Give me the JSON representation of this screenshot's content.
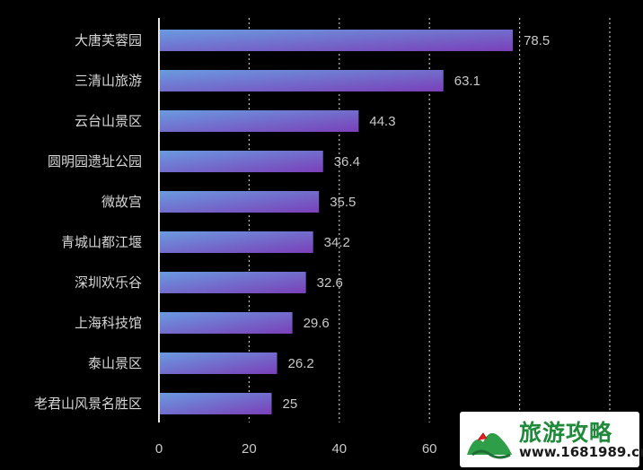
{
  "chart_data": {
    "type": "bar",
    "orientation": "horizontal",
    "categories": [
      "大唐芙蓉园",
      "三清山旅游",
      "云台山景区",
      "圆明园遗址公园",
      "微故宫",
      "青城山都江堰",
      "深圳欢乐谷",
      "上海科技馆",
      "泰山景区",
      "老君山风景名胜区"
    ],
    "values": [
      78.5,
      63.1,
      44.3,
      36.4,
      35.5,
      34.2,
      32.6,
      29.6,
      26.2,
      25
    ],
    "value_labels": [
      "78.5",
      "63.1",
      "44.3",
      "36.4",
      "35.5",
      "34.2",
      "32.6",
      "29.6",
      "26.2",
      "25"
    ],
    "x_ticks": [
      "0",
      "20",
      "40",
      "60"
    ],
    "xlim": [
      0,
      100
    ],
    "grid": "vertical dotted",
    "colors": {
      "bar_start": "#6a9be0",
      "bar_end": "#7a3fb8",
      "background": "#000000"
    }
  },
  "watermark": {
    "title": "旅游攻略",
    "url": "www.1681989.cn"
  }
}
